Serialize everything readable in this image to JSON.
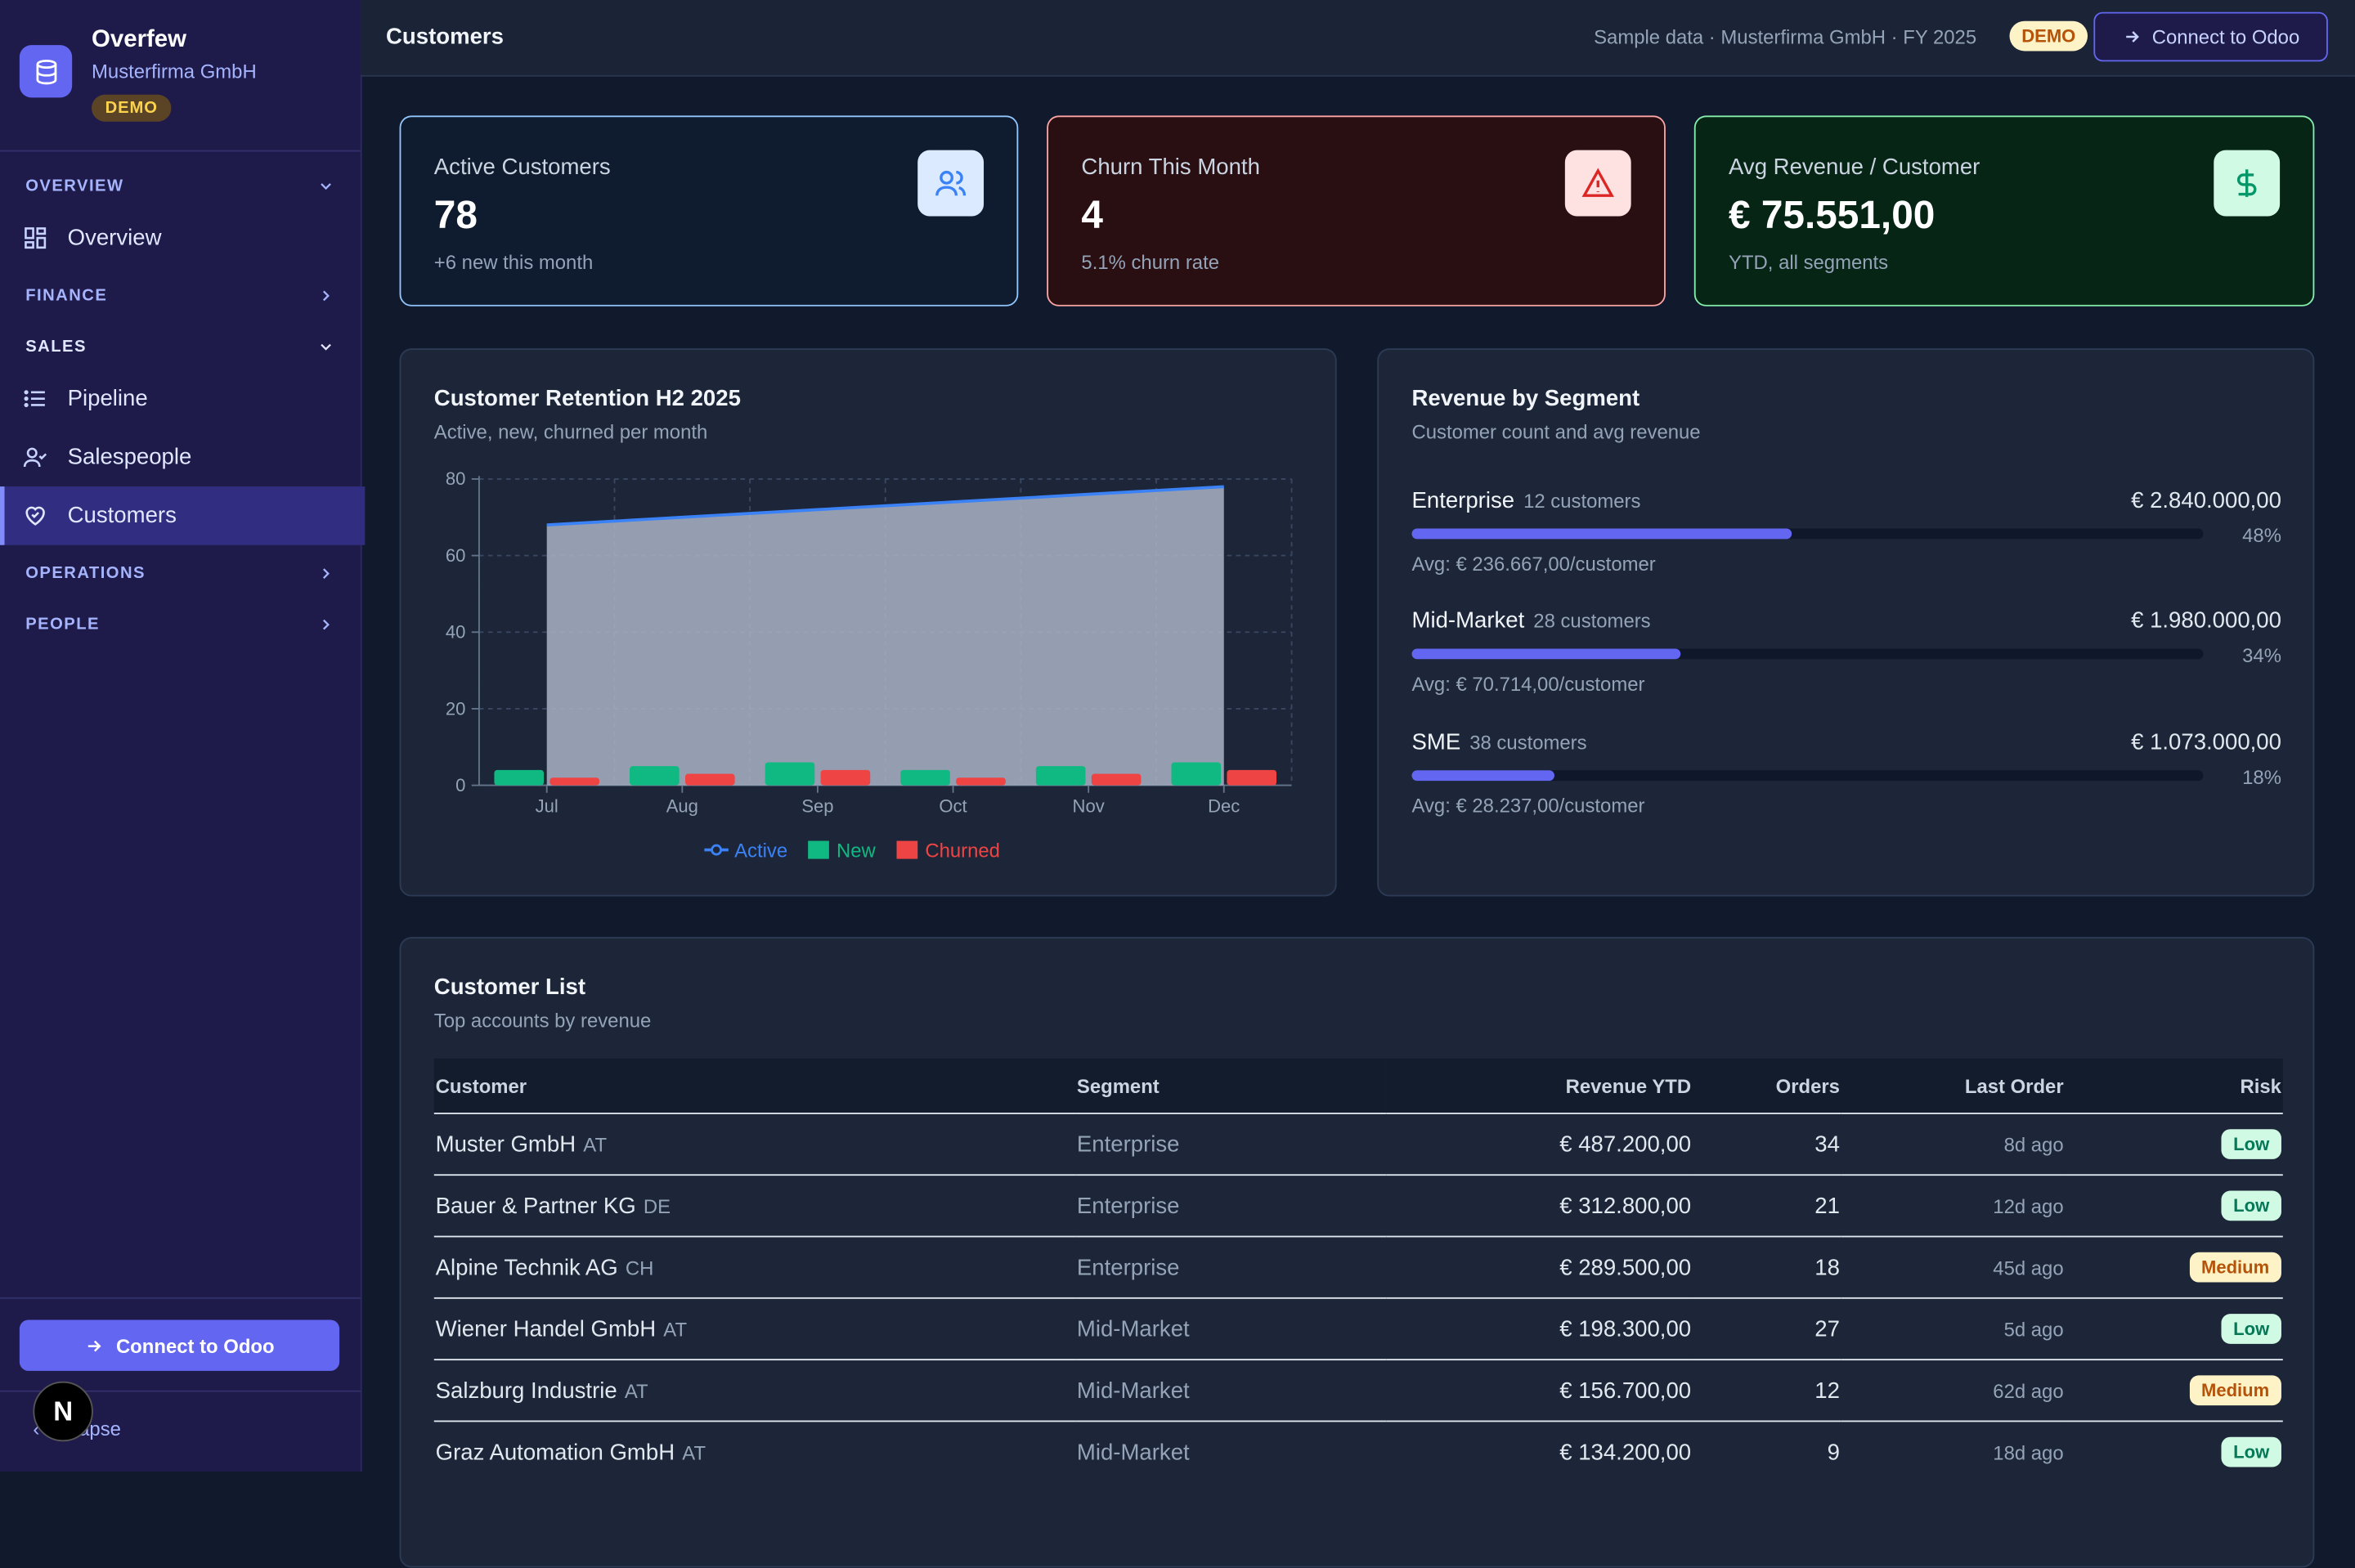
{
  "brand": {
    "title": "Overfew",
    "company": "Musterfirma GmbH",
    "badge": "DEMO"
  },
  "sidebar": {
    "sections": [
      {
        "label": "OVERVIEW",
        "expanded": true
      },
      {
        "label": "FINANCE",
        "expanded": false
      },
      {
        "label": "SALES",
        "expanded": true
      },
      {
        "label": "OPERATIONS",
        "expanded": false
      },
      {
        "label": "PEOPLE",
        "expanded": false
      }
    ],
    "items": [
      {
        "label": "Overview",
        "icon": "grid-icon"
      },
      {
        "label": "Pipeline",
        "icon": "list-icon"
      },
      {
        "label": "Salespeople",
        "icon": "user-check-icon"
      },
      {
        "label": "Customers",
        "icon": "heart-handshake-icon",
        "active": true
      }
    ],
    "connect_label": "Connect to Odoo",
    "collapse_label": "Collapse",
    "badge_letter": "N"
  },
  "header": {
    "title": "Customers",
    "meta": "Sample data · Musterfirma GmbH · FY 2025",
    "demo": "DEMO",
    "connect_label": "Connect to Odoo"
  },
  "kpis": [
    {
      "label": "Active Customers",
      "value": "78",
      "sub": "+6 new this month",
      "icon": "users-icon",
      "accent": "#3b82f6"
    },
    {
      "label": "Churn This Month",
      "value": "4",
      "sub": "5.1% churn rate",
      "icon": "alert-triangle-icon",
      "accent": "#dc2626"
    },
    {
      "label": "Avg Revenue / Customer",
      "value": "€ 75.551,00",
      "sub": "YTD, all segments",
      "icon": "dollar-icon",
      "accent": "#059669"
    }
  ],
  "retention": {
    "title": "Customer Retention H2 2025",
    "subtitle": "Active, new, churned per month"
  },
  "chart_data": {
    "type": "bar",
    "title": "Customer Retention H2 2025",
    "subtitle": "Active, new, churned per month",
    "categories": [
      "Jul",
      "Aug",
      "Sep",
      "Oct",
      "Nov",
      "Dec"
    ],
    "series": [
      {
        "name": "Active",
        "kind": "area",
        "color": "#3b82f6",
        "values": [
          68,
          70,
          72,
          74,
          76,
          78
        ]
      },
      {
        "name": "New",
        "kind": "bar",
        "color": "#10b981",
        "values": [
          4,
          5,
          6,
          4,
          5,
          6
        ]
      },
      {
        "name": "Churned",
        "kind": "bar",
        "color": "#ef4444",
        "values": [
          2,
          3,
          4,
          2,
          3,
          4
        ]
      }
    ],
    "yticks": [
      "0",
      "20",
      "40",
      "60",
      "80"
    ],
    "ylim": [
      0,
      80
    ],
    "grid": true,
    "legend": "bottom"
  },
  "segments": {
    "title": "Revenue by Segment",
    "subtitle": "Customer count and avg revenue",
    "items": [
      {
        "name": "Enterprise",
        "count": "12 customers",
        "amount": "€ 2.840.000,00",
        "pct": "48%",
        "share": 0.48,
        "avg": "Avg: € 236.667,00/customer"
      },
      {
        "name": "Mid-Market",
        "count": "28 customers",
        "amount": "€ 1.980.000,00",
        "pct": "34%",
        "share": 0.34,
        "avg": "Avg: € 70.714,00/customer"
      },
      {
        "name": "SME",
        "count": "38 customers",
        "amount": "€ 1.073.000,00",
        "pct": "18%",
        "share": 0.18,
        "avg": "Avg: € 28.237,00/customer"
      }
    ]
  },
  "customers": {
    "title": "Customer List",
    "subtitle": "Top accounts by revenue",
    "columns": [
      "Customer",
      "Segment",
      "Revenue YTD",
      "Orders",
      "Last Order",
      "Risk"
    ],
    "rows": [
      {
        "name": "Muster GmbH",
        "country": "AT",
        "segment": "Enterprise",
        "revenue": "€ 487.200,00",
        "orders": "34",
        "last": "8d ago",
        "risk": "Low"
      },
      {
        "name": "Bauer & Partner KG",
        "country": "DE",
        "segment": "Enterprise",
        "revenue": "€ 312.800,00",
        "orders": "21",
        "last": "12d ago",
        "risk": "Low"
      },
      {
        "name": "Alpine Technik AG",
        "country": "CH",
        "segment": "Enterprise",
        "revenue": "€ 289.500,00",
        "orders": "18",
        "last": "45d ago",
        "risk": "Medium"
      },
      {
        "name": "Wiener Handel GmbH",
        "country": "AT",
        "segment": "Mid-Market",
        "revenue": "€ 198.300,00",
        "orders": "27",
        "last": "5d ago",
        "risk": "Low"
      },
      {
        "name": "Salzburg Industrie",
        "country": "AT",
        "segment": "Mid-Market",
        "revenue": "€ 156.700,00",
        "orders": "12",
        "last": "62d ago",
        "risk": "Medium"
      },
      {
        "name": "Graz Automation GmbH",
        "country": "AT",
        "segment": "Mid-Market",
        "revenue": "€ 134.200,00",
        "orders": "9",
        "last": "18d ago",
        "risk": "Low"
      }
    ]
  }
}
